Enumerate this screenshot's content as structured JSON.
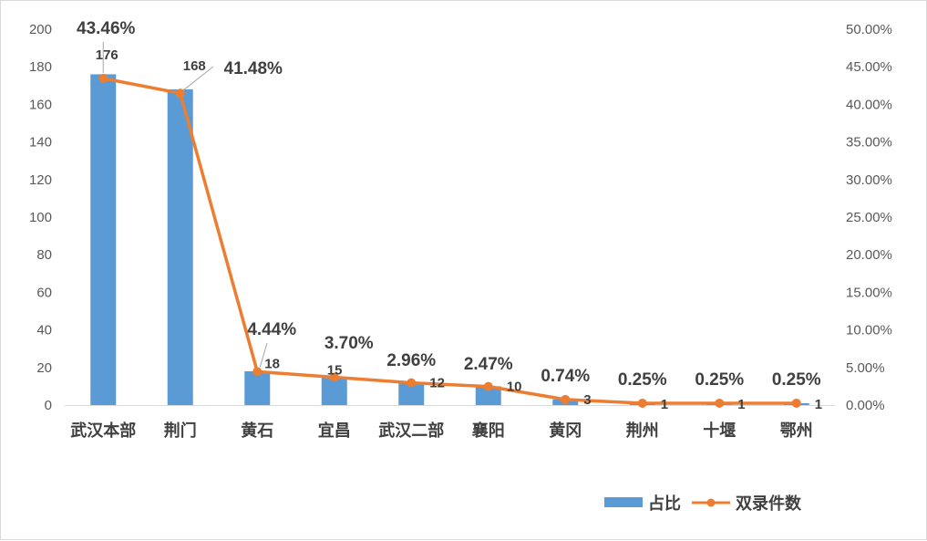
{
  "chart_data": {
    "type": "bar",
    "categories": [
      "武汉本部",
      "荆门",
      "黄石",
      "宜昌",
      "武汉二部",
      "襄阳",
      "黄冈",
      "荆州",
      "十堰",
      "鄂州"
    ],
    "series": [
      {
        "name": "占比",
        "type": "bar",
        "axis": "left",
        "values": [
          176,
          168,
          18,
          15,
          12,
          10,
          3,
          1,
          1,
          1
        ],
        "labels": [
          "176",
          "168",
          "18",
          "15",
          "12",
          "10",
          "3",
          "1",
          "1",
          "1"
        ],
        "color": "#5B9BD5"
      },
      {
        "name": "双录件数",
        "type": "line",
        "axis": "right",
        "values": [
          43.46,
          41.48,
          4.44,
          3.7,
          2.96,
          2.47,
          0.74,
          0.25,
          0.25,
          0.25
        ],
        "labels": [
          "43.46%",
          "41.48%",
          "4.44%",
          "3.70%",
          "2.96%",
          "2.47%",
          "0.74%",
          "0.25%",
          "0.25%",
          "0.25%"
        ],
        "color": "#ED7D31"
      }
    ],
    "y_left": {
      "min": 0,
      "max": 200,
      "ticks": [
        "0",
        "20",
        "40",
        "60",
        "80",
        "100",
        "120",
        "140",
        "160",
        "180",
        "200"
      ]
    },
    "y_right": {
      "min": 0,
      "max": 50,
      "ticks": [
        "0.00%",
        "5.00%",
        "10.00%",
        "15.00%",
        "20.00%",
        "25.00%",
        "30.00%",
        "35.00%",
        "40.00%",
        "45.00%",
        "50.00%"
      ]
    },
    "grid": false,
    "legend": "bottom-right"
  }
}
